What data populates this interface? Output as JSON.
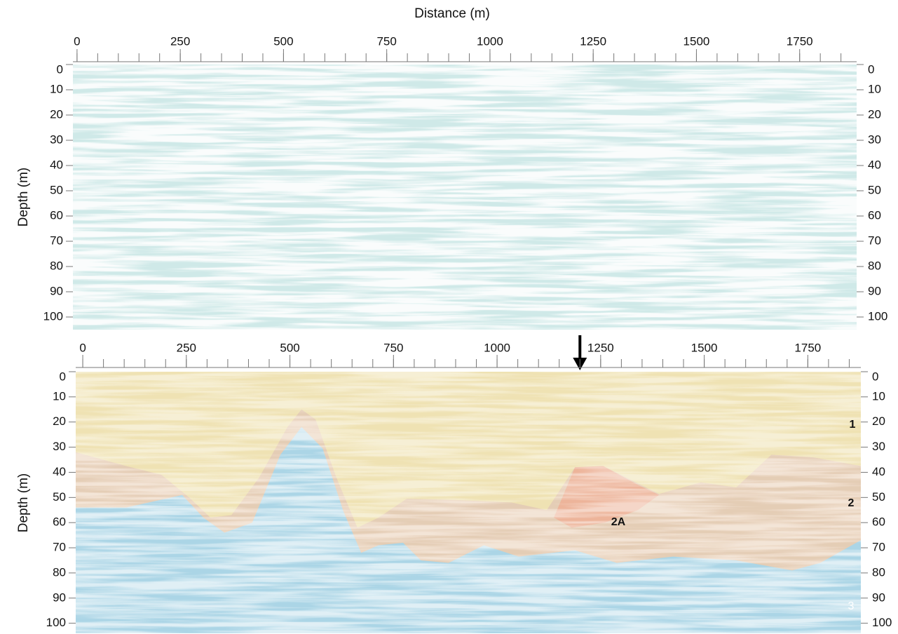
{
  "chart_data": [
    {
      "type": "seismic",
      "title": "Distance (m)",
      "ylabel": "Depth (m)",
      "xlim": [
        -10,
        1888
      ],
      "ylim": [
        0,
        105
      ],
      "xticks": [
        0,
        250,
        500,
        750,
        1000,
        1250,
        1500,
        1750
      ],
      "xminorticks": [
        0,
        50,
        100,
        150,
        200,
        250,
        300,
        350,
        400,
        450,
        500,
        550,
        600,
        650,
        700,
        750,
        800,
        850,
        900,
        950,
        1000,
        1050,
        1100,
        1150,
        1200,
        1250,
        1300,
        1350,
        1400,
        1450,
        1500,
        1550,
        1600,
        1650,
        1700,
        1750,
        1800,
        1850
      ],
      "yticks": [
        0,
        10,
        20,
        30,
        40,
        50,
        60,
        70,
        80,
        90,
        100
      ],
      "color": "#cfe9e8"
    },
    {
      "type": "seismic",
      "ylabel": "Depth (m)",
      "xlim": [
        -17,
        1878
      ],
      "ylim": [
        0,
        104
      ],
      "xticks": [
        0,
        250,
        500,
        750,
        1000,
        1250,
        1500,
        1750
      ],
      "xminorticks": [
        0,
        50,
        100,
        150,
        200,
        250,
        300,
        350,
        400,
        450,
        500,
        550,
        600,
        650,
        700,
        750,
        800,
        850,
        900,
        950,
        1000,
        1050,
        1100,
        1150,
        1200,
        1250,
        1300,
        1350,
        1400,
        1450,
        1500,
        1550,
        1600,
        1650,
        1700,
        1750,
        1800,
        1850
      ],
      "yticks": [
        0,
        10,
        20,
        30,
        40,
        50,
        60,
        70,
        80,
        90,
        100
      ],
      "arrow_x": 1200,
      "series": [
        {
          "name": "1",
          "color": "#f1e7b3",
          "x": [
            -17,
            105,
            190,
            257,
            308,
            359,
            426,
            494,
            528,
            562,
            612,
            663,
            714,
            782,
            900,
            1035,
            1120,
            1188,
            1256,
            1391,
            1492,
            1577,
            1662,
            1763,
            1878
          ],
          "values": [
            32,
            37.5,
            41,
            50,
            58,
            57,
            42,
            22,
            15,
            19,
            42,
            62,
            58,
            50.5,
            51,
            52,
            55,
            38,
            37.5,
            48.6,
            44,
            46,
            33,
            34,
            37.5
          ]
        },
        {
          "name": "2",
          "color": "#f2cba9",
          "x": [
            -17,
            105,
            240,
            291,
            342,
            409,
            477,
            528,
            579,
            629,
            672,
            714,
            773,
            816,
            883,
            968,
            1052,
            1188,
            1289,
            1425,
            1577,
            1712,
            1780,
            1878
          ],
          "values": [
            54,
            54,
            49,
            58,
            64,
            60,
            33,
            22,
            30.5,
            55.5,
            72,
            69,
            68,
            75,
            76,
            69,
            73.5,
            71,
            76,
            73.5,
            75,
            79,
            76,
            67
          ]
        },
        {
          "name": "2A",
          "color": "#efae94",
          "x": [
            1137,
            1188,
            1256,
            1340,
            1391,
            1340,
            1260,
            1180
          ],
          "values": [
            58,
            38,
            37.5,
            45,
            49,
            55,
            60,
            62
          ]
        },
        {
          "name": "3",
          "color": "#abd5e6"
        }
      ]
    }
  ]
}
